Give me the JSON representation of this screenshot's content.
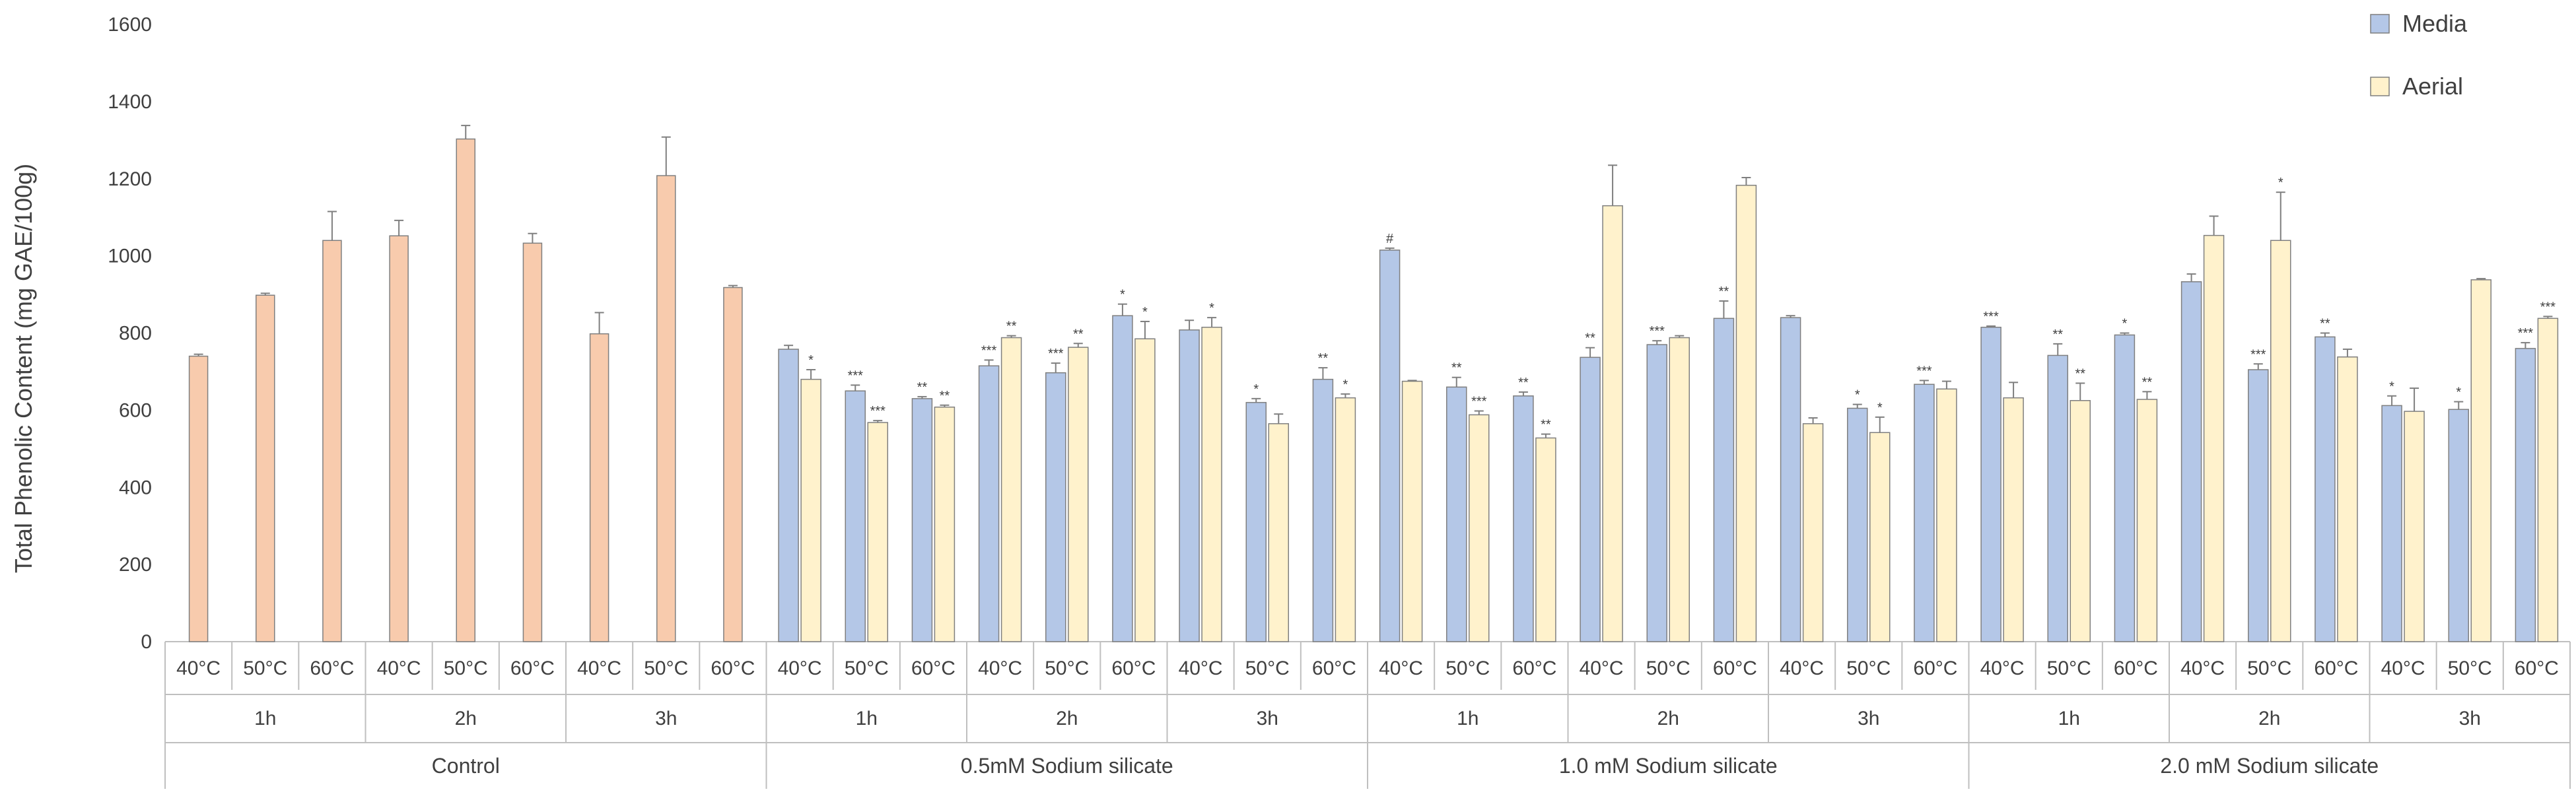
{
  "chart_data": {
    "type": "bar",
    "ylabel": "Total Phenolic Content (mg GAE/100g)",
    "ylim": [
      0,
      1600
    ],
    "yticks": [
      0,
      200,
      400,
      600,
      800,
      1000,
      1200,
      1400,
      1600
    ],
    "grid": false,
    "legend": {
      "position": "top-right",
      "entries": [
        "Media",
        "Aerial"
      ]
    },
    "colors": {
      "Media": "#b4c7e7",
      "Aerial": "#fff2cc",
      "Control": "#f8cbad",
      "outline": "#7f7f7f"
    },
    "groups": [
      {
        "name": "Control",
        "times": [
          {
            "time": "1h",
            "bars": [
              {
                "temp": "40°C",
                "value": 740,
                "error": 5
              },
              {
                "temp": "50°C",
                "value": 898,
                "error": 5
              },
              {
                "temp": "60°C",
                "value": 1040,
                "error": 75
              }
            ]
          },
          {
            "time": "2h",
            "bars": [
              {
                "temp": "40°C",
                "value": 1052,
                "error": 40
              },
              {
                "temp": "50°C",
                "value": 1303,
                "error": 35
              },
              {
                "temp": "60°C",
                "value": 1033,
                "error": 25
              }
            ]
          },
          {
            "time": "3h",
            "bars": [
              {
                "temp": "40°C",
                "value": 798,
                "error": 55
              },
              {
                "temp": "50°C",
                "value": 1208,
                "error": 100
              },
              {
                "temp": "60°C",
                "value": 918,
                "error": 5
              }
            ]
          }
        ]
      },
      {
        "name": "0.5mM Sodium silicate",
        "times": [
          {
            "time": "1h",
            "bars": [
              {
                "temp": "40°C",
                "media": 758,
                "media_err": 10,
                "media_sig": "",
                "aerial": 680,
                "aerial_err": 25,
                "aerial_sig": "*"
              },
              {
                "temp": "50°C",
                "media": 650,
                "media_err": 15,
                "media_sig": "***",
                "aerial": 568,
                "aerial_err": 5,
                "aerial_sig": "***"
              },
              {
                "temp": "60°C",
                "media": 630,
                "media_err": 5,
                "media_sig": "**",
                "aerial": 608,
                "aerial_err": 5,
                "aerial_sig": "**"
              }
            ]
          },
          {
            "time": "2h",
            "bars": [
              {
                "temp": "40°C",
                "media": 715,
                "media_err": 15,
                "media_sig": "***",
                "aerial": 788,
                "aerial_err": 5,
                "aerial_sig": "**"
              },
              {
                "temp": "50°C",
                "media": 697,
                "media_err": 25,
                "media_sig": "***",
                "aerial": 763,
                "aerial_err": 10,
                "aerial_sig": "**"
              },
              {
                "temp": "60°C",
                "media": 845,
                "media_err": 30,
                "media_sig": "*",
                "aerial": 785,
                "aerial_err": 45,
                "aerial_sig": "*"
              }
            ]
          },
          {
            "time": "3h",
            "bars": [
              {
                "temp": "40°C",
                "media": 808,
                "media_err": 25,
                "media_sig": "",
                "aerial": 815,
                "aerial_err": 25,
                "aerial_sig": "*"
              },
              {
                "temp": "50°C",
                "media": 620,
                "media_err": 10,
                "media_sig": "*",
                "aerial": 565,
                "aerial_err": 25,
                "aerial_sig": ""
              },
              {
                "temp": "60°C",
                "media": 680,
                "media_err": 30,
                "media_sig": "**",
                "aerial": 632,
                "aerial_err": 10,
                "aerial_sig": "*"
              }
            ]
          }
        ]
      },
      {
        "name": "1.0 mM Sodium silicate",
        "times": [
          {
            "time": "1h",
            "bars": [
              {
                "temp": "40°C",
                "media": 1015,
                "media_err": 5,
                "media_sig": "#",
                "aerial": 675,
                "aerial_err": 2,
                "aerial_sig": ""
              },
              {
                "temp": "50°C",
                "media": 660,
                "media_err": 25,
                "media_sig": "**",
                "aerial": 588,
                "aerial_err": 10,
                "aerial_sig": "***"
              },
              {
                "temp": "60°C",
                "media": 637,
                "media_err": 10,
                "media_sig": "**",
                "aerial": 528,
                "aerial_err": 10,
                "aerial_sig": "**"
              }
            ]
          },
          {
            "time": "2h",
            "bars": [
              {
                "temp": "40°C",
                "media": 737,
                "media_err": 25,
                "media_sig": "**",
                "aerial": 1130,
                "aerial_err": 105,
                "aerial_sig": ""
              },
              {
                "temp": "50°C",
                "media": 770,
                "media_err": 10,
                "media_sig": "***",
                "aerial": 788,
                "aerial_err": 5,
                "aerial_sig": ""
              },
              {
                "temp": "60°C",
                "media": 838,
                "media_err": 45,
                "media_sig": "**",
                "aerial": 1183,
                "aerial_err": 20,
                "aerial_sig": ""
              }
            ]
          },
          {
            "time": "3h",
            "bars": [
              {
                "temp": "40°C",
                "media": 840,
                "media_err": 5,
                "media_sig": "",
                "aerial": 565,
                "aerial_err": 15,
                "aerial_sig": ""
              },
              {
                "temp": "50°C",
                "media": 605,
                "media_err": 10,
                "media_sig": "*",
                "aerial": 542,
                "aerial_err": 40,
                "aerial_sig": "*"
              },
              {
                "temp": "60°C",
                "media": 667,
                "media_err": 10,
                "media_sig": "***",
                "aerial": 655,
                "aerial_err": 20,
                "aerial_sig": ""
              }
            ]
          }
        ]
      },
      {
        "name": "2.0 mM Sodium silicate",
        "times": [
          {
            "time": "1h",
            "bars": [
              {
                "temp": "40°C",
                "media": 815,
                "media_err": 3,
                "media_sig": "***",
                "aerial": 632,
                "aerial_err": 40,
                "aerial_sig": ""
              },
              {
                "temp": "50°C",
                "media": 742,
                "media_err": 30,
                "media_sig": "**",
                "aerial": 625,
                "aerial_err": 45,
                "aerial_sig": "**"
              },
              {
                "temp": "60°C",
                "media": 795,
                "media_err": 5,
                "media_sig": "*",
                "aerial": 628,
                "aerial_err": 20,
                "aerial_sig": "**"
              }
            ]
          },
          {
            "time": "2h",
            "bars": [
              {
                "temp": "40°C",
                "media": 933,
                "media_err": 20,
                "media_sig": "",
                "aerial": 1053,
                "aerial_err": 50,
                "aerial_sig": ""
              },
              {
                "temp": "50°C",
                "media": 705,
                "media_err": 15,
                "media_sig": "***",
                "aerial": 1040,
                "aerial_err": 125,
                "aerial_sig": "*"
              },
              {
                "temp": "60°C",
                "media": 790,
                "media_err": 10,
                "media_sig": "**",
                "aerial": 738,
                "aerial_err": 20,
                "aerial_sig": ""
              }
            ]
          },
          {
            "time": "3h",
            "bars": [
              {
                "temp": "40°C",
                "media": 612,
                "media_err": 25,
                "media_sig": "*",
                "aerial": 597,
                "aerial_err": 60,
                "aerial_sig": ""
              },
              {
                "temp": "50°C",
                "media": 602,
                "media_err": 20,
                "media_sig": "*",
                "aerial": 938,
                "aerial_err": 3,
                "aerial_sig": ""
              },
              {
                "temp": "60°C",
                "media": 760,
                "media_err": 15,
                "media_sig": "***",
                "aerial": 838,
                "aerial_err": 5,
                "aerial_sig": "***"
              }
            ]
          }
        ]
      }
    ]
  }
}
